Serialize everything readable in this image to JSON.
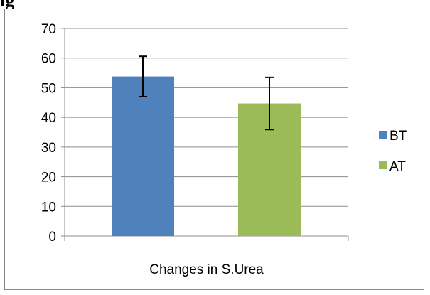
{
  "page": {
    "heading_fragment": "ig"
  },
  "chart_data": {
    "type": "bar",
    "categories": [
      "Changes in S.Urea"
    ],
    "series": [
      {
        "name": "BT",
        "values": [
          53.8
        ],
        "error": [
          6.8
        ],
        "color": "#4f81bd"
      },
      {
        "name": "AT",
        "values": [
          44.7
        ],
        "error": [
          8.8
        ],
        "color": "#9bbb59"
      }
    ],
    "title": "",
    "xlabel": "",
    "ylabel": "",
    "ylim": [
      0,
      70
    ],
    "yticks": [
      "0",
      "10",
      "20",
      "30",
      "40",
      "50",
      "60",
      "70"
    ],
    "grid": true,
    "legend": {
      "placement": "right",
      "entries": [
        "BT",
        "AT"
      ]
    }
  }
}
